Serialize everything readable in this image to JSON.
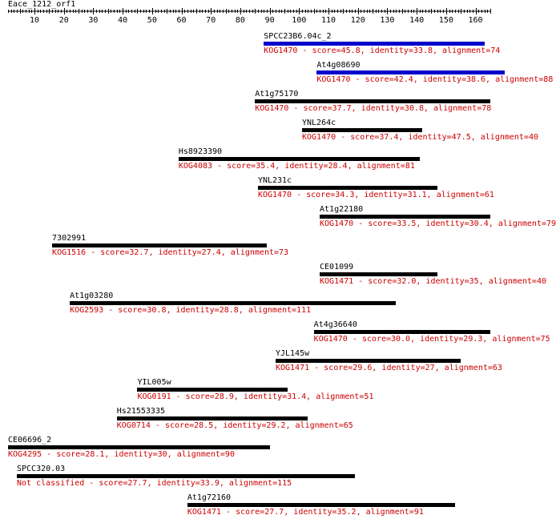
{
  "title": "Eace_1212_orf1",
  "axis": {
    "min": 1,
    "max": 165,
    "labels": [
      "10",
      "20",
      "30",
      "40",
      "50",
      "60",
      "70",
      "80",
      "90",
      "100",
      "110",
      "120",
      "130",
      "140",
      "150",
      "160"
    ]
  },
  "colors": {
    "bar": "#000000",
    "bar_highlight": "#0000cc",
    "desc": "#cc0000"
  },
  "hits": [
    {
      "name": "SPCC23B6.04c_2",
      "desc": "KOG1470 - score=45.8, identity=33.8, alignment=74",
      "start": 88,
      "end": 163,
      "highlight": true
    },
    {
      "name": "At4g08690",
      "desc": "KOG1470 - score=42.4, identity=38.6, alignment=88",
      "start": 106,
      "end": 170,
      "highlight": true
    },
    {
      "name": "At1g75170",
      "desc": "KOG1470 - score=37.7, identity=30.8, alignment=78",
      "start": 85,
      "end": 165,
      "highlight": false
    },
    {
      "name": "YNL264c",
      "desc": "KOG1470 - score=37.4, identity=47.5, alignment=40",
      "start": 101,
      "end": 142,
      "highlight": false
    },
    {
      "name": "Hs8923390",
      "desc": "KOG4083 - score=35.4, identity=28.4, alignment=81",
      "start": 59,
      "end": 141,
      "highlight": false
    },
    {
      "name": "YNL231c",
      "desc": "KOG1470 - score=34.3, identity=31.1, alignment=61",
      "start": 86,
      "end": 147,
      "highlight": false
    },
    {
      "name": "At1g22180",
      "desc": "KOG1470 - score=33.5, identity=30.4, alignment=79",
      "start": 107,
      "end": 165,
      "highlight": false
    },
    {
      "name": "7302991",
      "desc": "KOG1516 - score=32.7, identity=27.4, alignment=73",
      "start": 16,
      "end": 89,
      "highlight": false
    },
    {
      "name": "CE01099",
      "desc": "KOG1471 - score=32.0, identity=35, alignment=40",
      "start": 107,
      "end": 147,
      "highlight": false
    },
    {
      "name": "At1g03280",
      "desc": "KOG2593 - score=30.8, identity=28.8, alignment=111",
      "start": 22,
      "end": 133,
      "highlight": false
    },
    {
      "name": "At4g36640",
      "desc": "KOG1470 - score=30.0, identity=29.3, alignment=75",
      "start": 105,
      "end": 165,
      "highlight": false
    },
    {
      "name": "YJL145w",
      "desc": "KOG1471 - score=29.6, identity=27, alignment=63",
      "start": 92,
      "end": 155,
      "highlight": false
    },
    {
      "name": "YIL005w",
      "desc": "KOG0191 - score=28.9, identity=31.4, alignment=51",
      "start": 45,
      "end": 96,
      "highlight": false
    },
    {
      "name": "Hs21553335",
      "desc": "KOG0714 - score=28.5, identity=29.2, alignment=65",
      "start": 38,
      "end": 103,
      "highlight": false
    },
    {
      "name": "CE06696_2",
      "desc": "KOG4295 - score=28.1, identity=30, alignment=90",
      "start": 1,
      "end": 90,
      "highlight": false
    },
    {
      "name": "SPCC320.03",
      "desc": "Not classified - score=27.7, identity=33.9, alignment=115",
      "start": 4,
      "end": 119,
      "highlight": false
    },
    {
      "name": "At1g72160",
      "desc": "KOG1471 - score=27.7, identity=35.2, alignment=91",
      "start": 62,
      "end": 153,
      "highlight": false
    }
  ]
}
